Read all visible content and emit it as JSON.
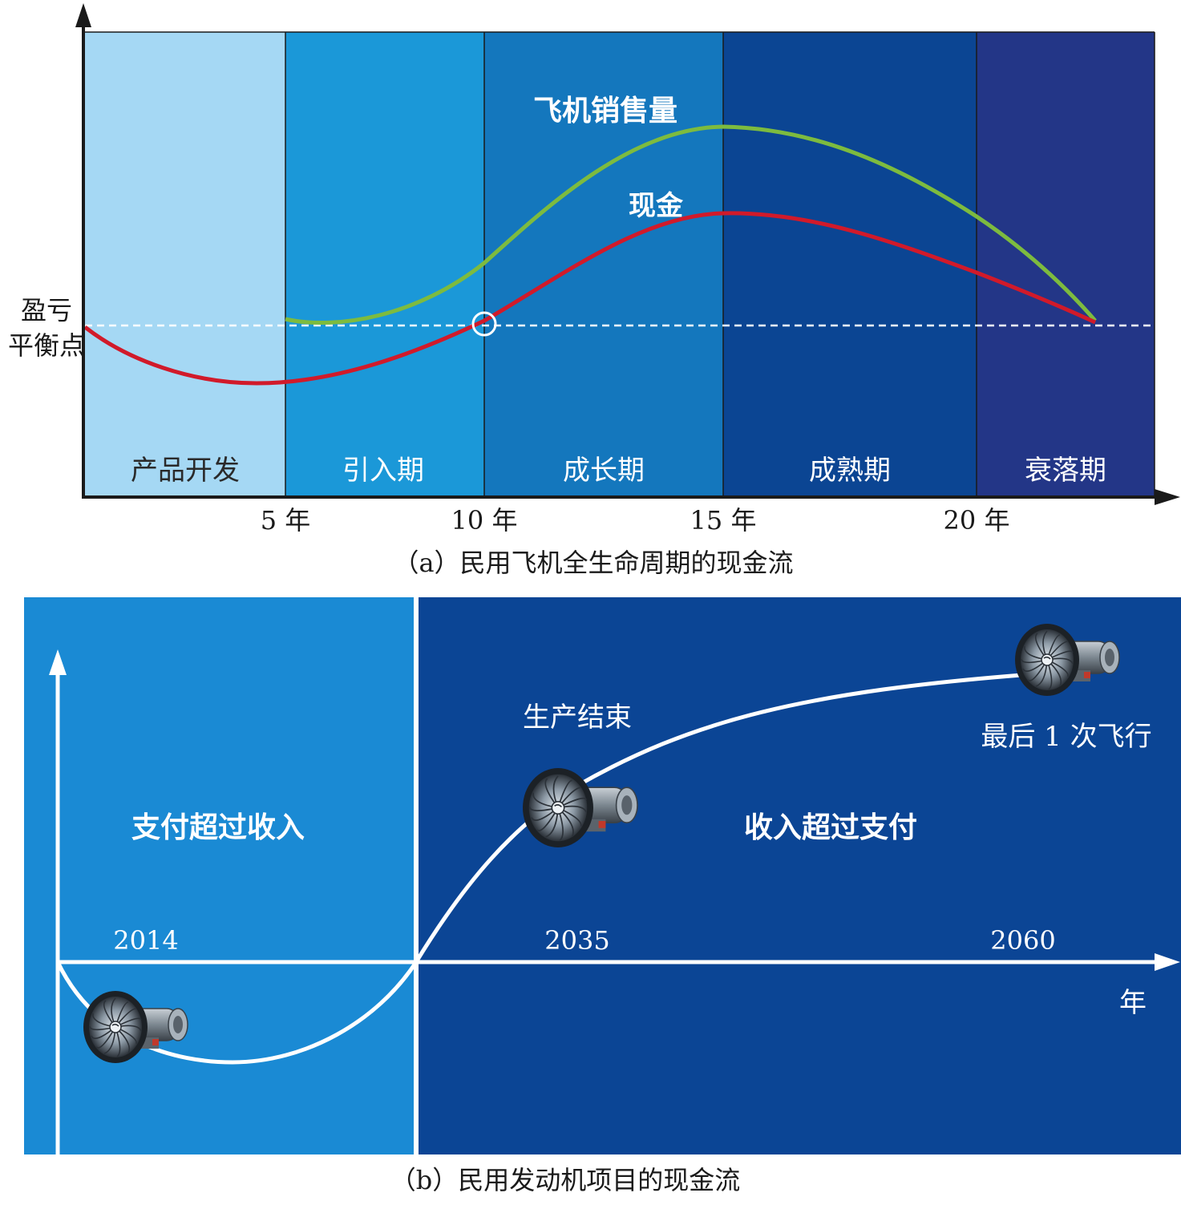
{
  "panel_a": {
    "phases": [
      {
        "label": "产品开发",
        "color": "#a5d8f4",
        "text_color": "#2a2a2a"
      },
      {
        "label": "引入期",
        "color": "#1b98d8",
        "text_color": "#ffffff"
      },
      {
        "label": "成长期",
        "color": "#1477bd",
        "text_color": "#ffffff"
      },
      {
        "label": "成熟期",
        "color": "#0b4593",
        "text_color": "#ffffff"
      },
      {
        "label": "衰落期",
        "color": "#233687",
        "text_color": "#ffffff"
      }
    ],
    "x_ticks": [
      "5 年",
      "10 年",
      "15 年",
      "20 年"
    ],
    "breakeven_label_line1": "盈亏",
    "breakeven_label_line2": "平衡点",
    "curve_sales_label": "飞机销售量",
    "curve_cash_label": "现金",
    "colors": {
      "sales": "#7dbb3f",
      "cash": "#d11a2a",
      "breakeven": "#ffffff"
    },
    "caption": "（a）民用飞机全生命周期的现金流"
  },
  "panel_b": {
    "left_region": {
      "label": "支付超过收入",
      "color": "#1a8ad4"
    },
    "right_region": {
      "label": "收入超过支付",
      "color": "#0b4595"
    },
    "years": [
      "2014",
      "2035",
      "2060"
    ],
    "axis_unit": "年",
    "milestone_production_end": "生产结束",
    "milestone_last_flight": "最后 1 次飞行",
    "caption": "（b）民用发动机项目的现金流"
  }
}
